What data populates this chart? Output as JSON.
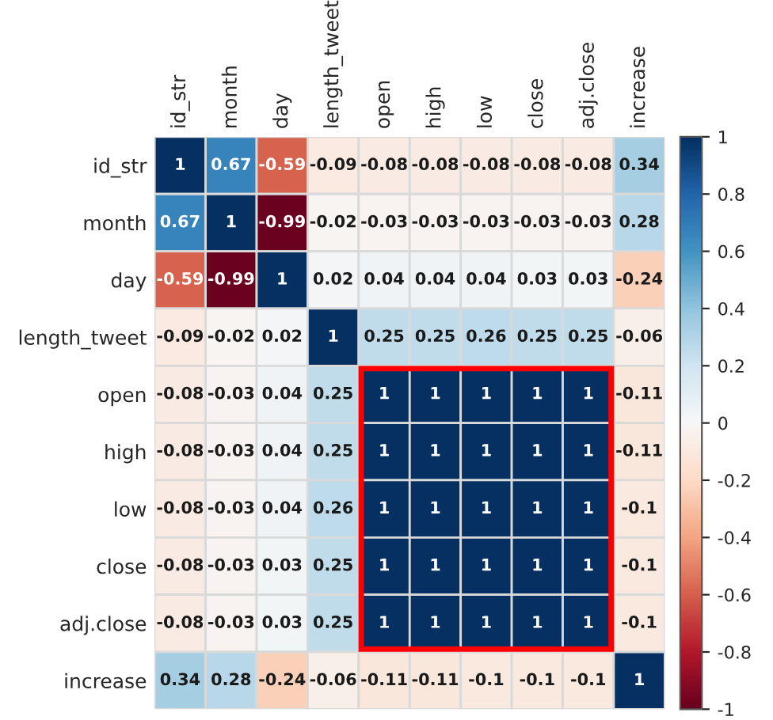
{
  "chart_data": {
    "type": "heatmap",
    "categories": [
      "id_str",
      "month",
      "day",
      "length_tweet",
      "open",
      "high",
      "low",
      "close",
      "adj.close",
      "increase"
    ],
    "y_categories": [
      "id_str",
      "month",
      "day",
      "length_tweet",
      "open",
      "high",
      "low",
      "close",
      "adj.close",
      "increase"
    ],
    "cells": [
      [
        1,
        0.67,
        -0.59,
        -0.09,
        -0.08,
        -0.08,
        -0.08,
        -0.08,
        -0.08,
        0.34
      ],
      [
        0.67,
        1,
        -0.99,
        -0.02,
        -0.03,
        -0.03,
        -0.03,
        -0.03,
        -0.03,
        0.28
      ],
      [
        -0.59,
        -0.99,
        1,
        0.02,
        0.04,
        0.04,
        0.04,
        0.03,
        0.03,
        -0.24
      ],
      [
        -0.09,
        -0.02,
        0.02,
        1,
        0.25,
        0.25,
        0.26,
        0.25,
        0.25,
        -0.06
      ],
      [
        -0.08,
        -0.03,
        0.04,
        0.25,
        1,
        1,
        1,
        1,
        1,
        -0.11
      ],
      [
        -0.08,
        -0.03,
        0.04,
        0.25,
        1,
        1,
        1,
        1,
        1,
        -0.11
      ],
      [
        -0.08,
        -0.03,
        0.04,
        0.26,
        1,
        1,
        1,
        1,
        1,
        -0.1
      ],
      [
        -0.08,
        -0.03,
        0.03,
        0.25,
        1,
        1,
        1,
        1,
        1,
        -0.1
      ],
      [
        -0.08,
        -0.03,
        0.03,
        0.25,
        1,
        1,
        1,
        1,
        1,
        -0.1
      ],
      [
        0.34,
        0.28,
        -0.24,
        -0.06,
        -0.11,
        -0.11,
        -0.1,
        -0.1,
        -0.1,
        1
      ]
    ],
    "clim": [
      -1,
      1
    ],
    "cticks": [
      -1,
      {
        "value": -0.8,
        "label": "-0.8"
      },
      {
        "value": -0.6,
        "label": "-0.6"
      },
      {
        "value": -0.4,
        "label": "-0.4"
      },
      {
        "value": -0.2,
        "label": "-0.2"
      },
      0,
      {
        "value": 0.2,
        "label": "0.2"
      },
      {
        "value": 0.4,
        "label": "0.4"
      },
      {
        "value": 0.6,
        "label": "0.6"
      },
      {
        "value": 0.8,
        "label": "0.8"
      },
      1
    ],
    "data_labels": true
  }
}
